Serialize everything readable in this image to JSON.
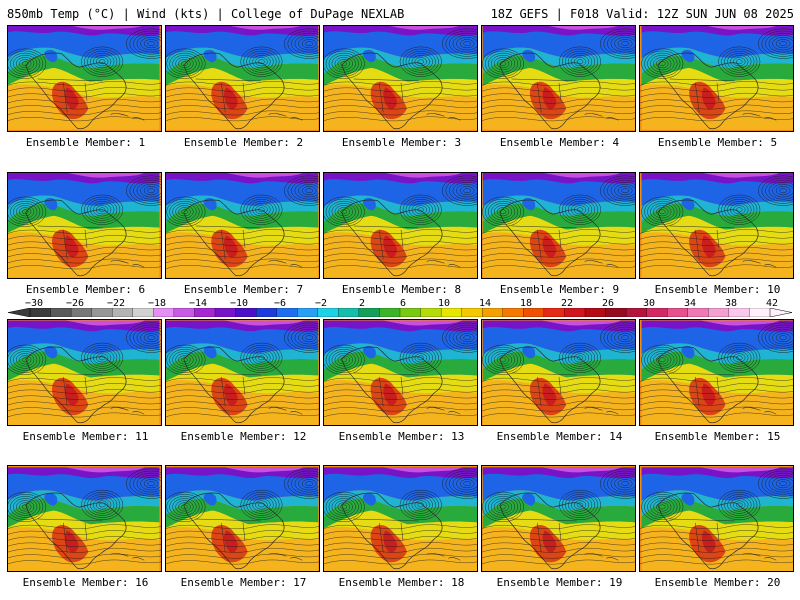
{
  "header": {
    "left": "850mb Temp (°C) | Wind (kts) | College of DuPage NEXLAB",
    "right": "18Z GEFS | F018 Valid: 12Z SUN JUN 08 2025"
  },
  "members": [
    "Ensemble Member: 1",
    "Ensemble Member: 2",
    "Ensemble Member: 3",
    "Ensemble Member: 4",
    "Ensemble Member: 5",
    "Ensemble Member: 6",
    "Ensemble Member: 7",
    "Ensemble Member: 8",
    "Ensemble Member: 9",
    "Ensemble Member: 10",
    "Ensemble Member: 11",
    "Ensemble Member: 12",
    "Ensemble Member: 13",
    "Ensemble Member: 14",
    "Ensemble Member: 15",
    "Ensemble Member: 16",
    "Ensemble Member: 17",
    "Ensemble Member: 18",
    "Ensemble Member: 19",
    "Ensemble Member: 20"
  ],
  "colorbar": {
    "labels": [
      "−30",
      "−26",
      "−22",
      "−18",
      "−14",
      "−10",
      "−6",
      "−2",
      "2",
      "6",
      "10",
      "14",
      "18",
      "22",
      "26",
      "30",
      "34",
      "38",
      "42"
    ],
    "colors": [
      "#3c3c3c",
      "#5a5a5a",
      "#787878",
      "#969696",
      "#b4b4b4",
      "#d2d2d2",
      "#e58ef5",
      "#c85ae6",
      "#a528d2",
      "#7814c8",
      "#4b0fc8",
      "#1e3cdc",
      "#1e6ef0",
      "#28a0f5",
      "#1ed2e6",
      "#14beaa",
      "#14a05a",
      "#3cb428",
      "#78c814",
      "#b4dc0a",
      "#e6e600",
      "#f5c800",
      "#f5a000",
      "#f57800",
      "#f05000",
      "#e62814",
      "#d2141e",
      "#b40a14",
      "#960a1e",
      "#b4143c",
      "#d22864",
      "#e6508c",
      "#f078b4",
      "#f5a0d2",
      "#fac8eb",
      "#fff0fa"
    ]
  },
  "map_palette": {
    "ocean_south": "#f08c14",
    "gulf_warm": "#dc4614",
    "central_hot": "#c81e1e",
    "plains": "#f5b41e",
    "midlat": "#e6dc14",
    "green_band": "#28aa3c",
    "cyan_band": "#1eb4d2",
    "blue_north": "#1e64e6",
    "purple_pole": "#7814c8",
    "pink_pole": "#c850dc",
    "contour": "#1a1a1a",
    "border": "#2a2a2a"
  }
}
